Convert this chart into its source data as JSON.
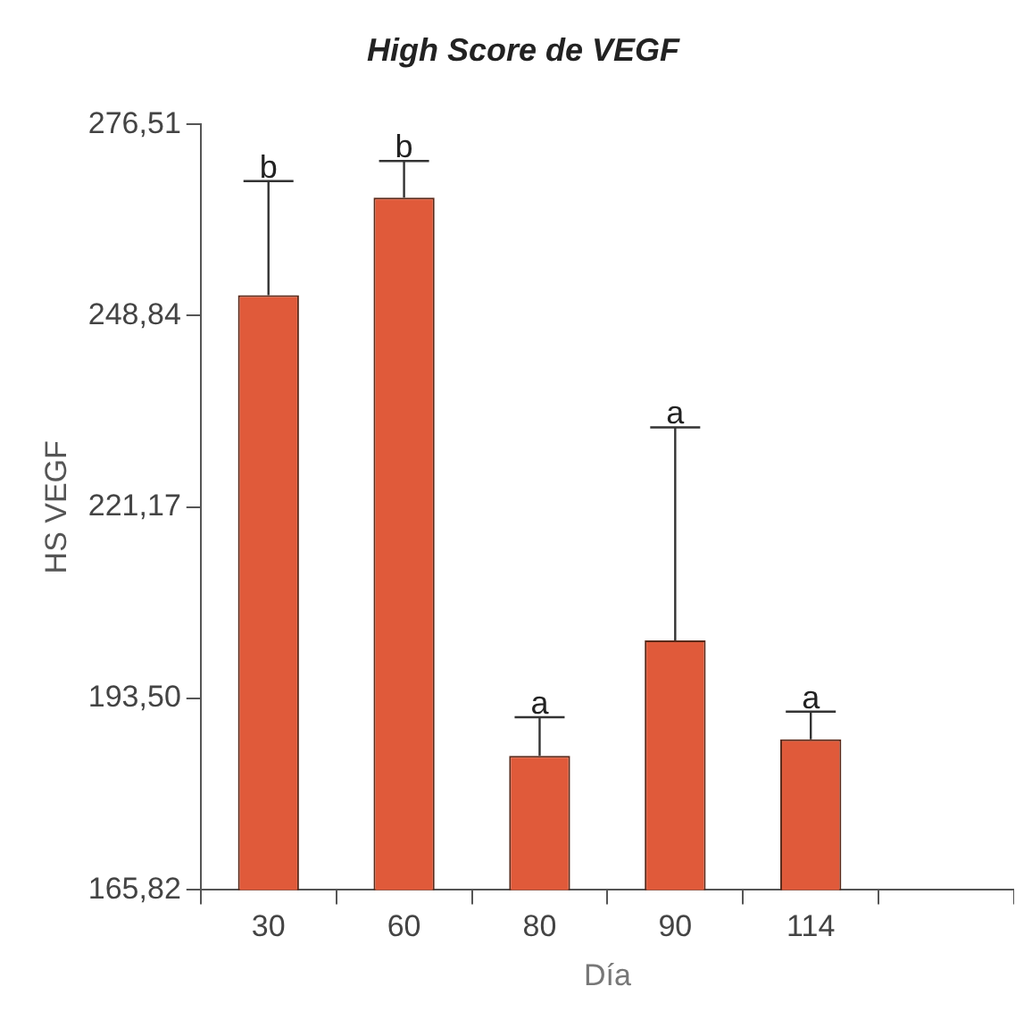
{
  "chart_data": {
    "type": "bar",
    "title": "High Score de VEGF",
    "xlabel": "Día",
    "ylabel": "HS VEGF",
    "categories": [
      "30",
      "60",
      "80",
      "90",
      "114",
      null
    ],
    "values": [
      251.8,
      265.9,
      185.2,
      201.9,
      187.6,
      null
    ],
    "errors": [
      [
        251.8,
        268.3
      ],
      [
        265.9,
        271.2
      ],
      [
        185.2,
        190.8
      ],
      [
        201.9,
        232.7
      ],
      [
        187.6,
        191.6
      ],
      null
    ],
    "color": "#e05a3a",
    "ylim": [
      165.82,
      276.51
    ],
    "yticks": [
      {
        "value": 165.82,
        "label": "165,82"
      },
      {
        "value": 193.5,
        "label": "193,50"
      },
      {
        "value": 221.17,
        "label": "221,17"
      },
      {
        "value": 248.84,
        "label": "248,84"
      },
      {
        "value": 276.51,
        "label": "276,51"
      }
    ],
    "annotations": [
      {
        "text": "b",
        "x": "30",
        "y": 268.3
      },
      {
        "text": "b",
        "x": "60",
        "y": 271.2
      },
      {
        "text": "a",
        "x": "80",
        "y": 190.8
      },
      {
        "text": "a",
        "x": "90",
        "y": 232.7
      },
      {
        "text": "a",
        "x": "114",
        "y": 191.6
      }
    ],
    "grid": false,
    "legend": false
  }
}
